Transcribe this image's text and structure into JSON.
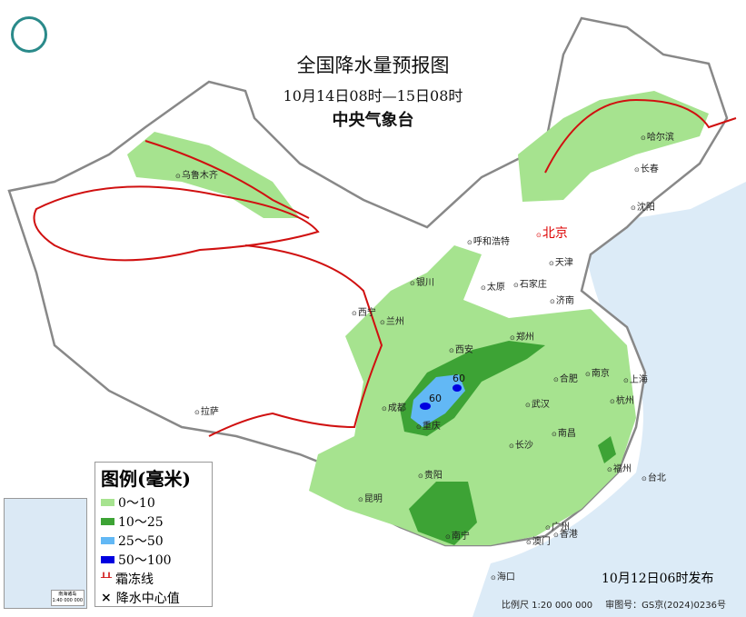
{
  "header": {
    "title": "全国降水量预报图",
    "period": "10月14日08时—15日08时",
    "agency": "中央气象台"
  },
  "legend": {
    "title": "图例(毫米)",
    "items": [
      {
        "label": "0～10",
        "color": "#a6e38f"
      },
      {
        "label": "10～25",
        "color": "#3da335"
      },
      {
        "label": "25～50",
        "color": "#62b8f5"
      },
      {
        "label": "50～100",
        "color": "#0000e0"
      },
      {
        "label": "霜冻线",
        "color": "#d01010",
        "symbol": "frost-line"
      },
      {
        "label": "降水中心值",
        "color": "#000000",
        "symbol": "x"
      }
    ]
  },
  "cities": [
    "乌鲁木齐",
    "呼和浩特",
    "北京",
    "天津",
    "哈尔滨",
    "长春",
    "沈阳",
    "石家庄",
    "太原",
    "济南",
    "银川",
    "西宁",
    "兰州",
    "郑州",
    "西安",
    "合肥",
    "南京",
    "上海",
    "杭州",
    "武汉",
    "成都",
    "重庆",
    "拉萨",
    "长沙",
    "南昌",
    "福州",
    "台北",
    "贵阳",
    "昆明",
    "南宁",
    "广州",
    "澳门",
    "香港",
    "海口"
  ],
  "rain_centers": [
    "60",
    "60"
  ],
  "inset": {
    "title": "南海诸岛",
    "scale": "1:40 000 000"
  },
  "issued": "10月12日06时发布",
  "footer": {
    "scale": "比例尺 1:20 000 000",
    "approval": "审图号：GS京(2024)0236号"
  }
}
